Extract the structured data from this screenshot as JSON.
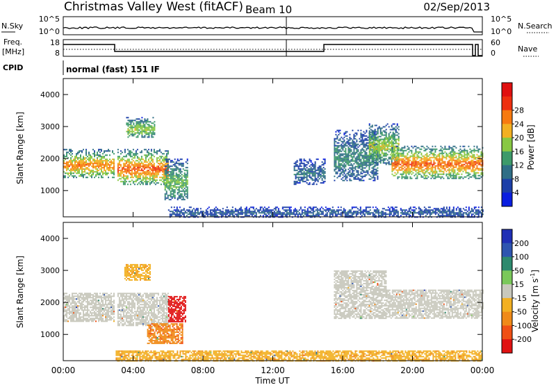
{
  "header": {
    "title": "Christmas Valley West (fitACF)",
    "beam": "Beam 10",
    "date": "02/Sep/2013"
  },
  "nsky_panel": {
    "left_label": "N.Sky",
    "right_label": "N.Search",
    "left_ticks": [
      "10^5",
      "10^0"
    ],
    "right_ticks": [
      "10^5",
      "10^0"
    ]
  },
  "freq_panel": {
    "left_label_1": "Freq.",
    "left_label_2": "[MHz]",
    "right_label": "Nave",
    "left_ticks": [
      "18",
      "8"
    ],
    "right_ticks": [
      "60",
      "0"
    ]
  },
  "cpid": {
    "label": "CPID",
    "value": "normal (fast) 151 IF"
  },
  "colors": {
    "power_scale": [
      "#0a1ee0",
      "#1c3fa8",
      "#2f6e86",
      "#3d9a6a",
      "#88c843",
      "#f2b022",
      "#f77a10",
      "#ee3010",
      "#e01010"
    ],
    "velocity_scale": [
      "#1f2fb5",
      "#2e55b0",
      "#2e8a6e",
      "#7ac85a",
      "#c8c8bc",
      "#f2b022",
      "#f08a18",
      "#f05014",
      "#e01212"
    ]
  },
  "chart_data": [
    {
      "type": "heatmap",
      "name": "Power",
      "ylabel": "Slant Range [km]",
      "xlabel": "Time UT",
      "x_ticks": [
        "00:00",
        "04:00",
        "08:00",
        "12:00",
        "16:00",
        "20:00",
        "00:00"
      ],
      "xlim_hours": [
        0,
        24
      ],
      "y_ticks": [
        1000,
        2000,
        3000,
        4000
      ],
      "ylim": [
        180,
        4500
      ],
      "colorbar_label": "Power [dB]",
      "colorbar_ticks": [
        4,
        8,
        12,
        16,
        20,
        24,
        28
      ],
      "colorbar_range": [
        0,
        32
      ],
      "regions": [
        {
          "t": [
            0.0,
            2.9
          ],
          "r": [
            1400,
            2300
          ],
          "level": 22
        },
        {
          "t": [
            3.1,
            6.0
          ],
          "r": [
            1200,
            2300
          ],
          "level": 24
        },
        {
          "t": [
            3.6,
            5.2
          ],
          "r": [
            2650,
            3300
          ],
          "level": 16
        },
        {
          "t": [
            5.8,
            7.1
          ],
          "r": [
            700,
            2000
          ],
          "level": 14
        },
        {
          "t": [
            13.2,
            15.0
          ],
          "r": [
            1200,
            2000
          ],
          "level": 8
        },
        {
          "t": [
            15.5,
            18.0
          ],
          "r": [
            1300,
            2900
          ],
          "level": 10
        },
        {
          "t": [
            17.5,
            19.2
          ],
          "r": [
            1800,
            3100
          ],
          "level": 16
        },
        {
          "t": [
            18.8,
            24.0
          ],
          "r": [
            1400,
            2400
          ],
          "level": 24
        },
        {
          "t": [
            6.0,
            24.0
          ],
          "r": [
            180,
            500
          ],
          "level": 6
        }
      ]
    },
    {
      "type": "heatmap",
      "name": "Velocity",
      "ylabel": "Slant Range [km]",
      "xlabel": "Time UT",
      "x_ticks": [
        "00:00",
        "04:00",
        "08:00",
        "12:00",
        "16:00",
        "20:00",
        "00:00"
      ],
      "xlim_hours": [
        0,
        24
      ],
      "y_ticks": [
        1000,
        2000,
        3000,
        4000
      ],
      "ylim": [
        180,
        4500
      ],
      "colorbar_label_main": "Velocity [m s",
      "colorbar_label_exp": "-1",
      "colorbar_label_end": "]",
      "colorbar_ticks": [
        200,
        100,
        50,
        15,
        -15,
        -50,
        -100,
        -200
      ],
      "regions": [
        {
          "t": [
            0.0,
            2.9
          ],
          "r": [
            1400,
            2300
          ],
          "v": 0
        },
        {
          "t": [
            3.1,
            6.0
          ],
          "r": [
            1300,
            2300
          ],
          "v": 0
        },
        {
          "t": [
            3.5,
            5.0
          ],
          "r": [
            2700,
            3200
          ],
          "v": -40
        },
        {
          "t": [
            6.0,
            7.0
          ],
          "r": [
            1400,
            2200
          ],
          "v": -220
        },
        {
          "t": [
            4.8,
            6.8
          ],
          "r": [
            700,
            1350
          ],
          "v": -90
        },
        {
          "t": [
            15.5,
            18.5
          ],
          "r": [
            1500,
            3000
          ],
          "v": 0
        },
        {
          "t": [
            18.5,
            24.0
          ],
          "r": [
            1500,
            2400
          ],
          "v": 0
        },
        {
          "t": [
            3.0,
            24.0
          ],
          "r": [
            180,
            500
          ],
          "v": -40
        }
      ]
    }
  ]
}
